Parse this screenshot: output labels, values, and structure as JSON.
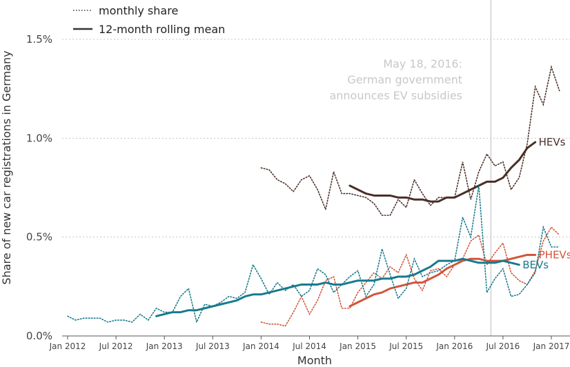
{
  "chart_data": {
    "type": "line",
    "xlabel": "Month",
    "ylabel": "Share of new car registrations in Germany",
    "x_range": [
      2012.0,
      2017.5
    ],
    "ylim": [
      0,
      1.7
    ],
    "x_ticks": [
      {
        "value": 2012.0,
        "label": "Jan 2012"
      },
      {
        "value": 2012.5,
        "label": "Jul 2012"
      },
      {
        "value": 2013.0,
        "label": "Jan 2013"
      },
      {
        "value": 2013.5,
        "label": "Jul 2013"
      },
      {
        "value": 2014.0,
        "label": "Jan 2014"
      },
      {
        "value": 2014.5,
        "label": "Jul 2014"
      },
      {
        "value": 2015.0,
        "label": "Jan 2015"
      },
      {
        "value": 2015.5,
        "label": "Jul 2015"
      },
      {
        "value": 2016.0,
        "label": "Jan 2016"
      },
      {
        "value": 2016.5,
        "label": "Jul 2016"
      },
      {
        "value": 2017.0,
        "label": "Jan 2017"
      }
    ],
    "y_ticks": [
      {
        "value": 0,
        "label": "0.0%"
      },
      {
        "value": 0.5,
        "label": "0.5%"
      },
      {
        "value": 1.0,
        "label": "1.0%"
      },
      {
        "value": 1.5,
        "label": "1.5%"
      }
    ],
    "grid": "horizontal dotted",
    "legend": {
      "position": "top-left",
      "items": [
        {
          "style": "dotted",
          "label": "monthly share"
        },
        {
          "style": "solid",
          "label": "12-month rolling mean"
        }
      ]
    },
    "annotation": {
      "x": 2016.375,
      "lines": [
        "May 18, 2016:",
        "German government",
        "announces EV subsidies"
      ]
    },
    "series": [
      {
        "name": "HEVs",
        "color": "#4a2e26",
        "monthly": {
          "start": 2014.0,
          "values": [
            0.85,
            0.84,
            0.79,
            0.77,
            0.73,
            0.79,
            0.81,
            0.74,
            0.64,
            0.83,
            0.72,
            0.72,
            0.71,
            0.7,
            0.67,
            0.61,
            0.61,
            0.69,
            0.65,
            0.79,
            0.72,
            0.66,
            0.7,
            0.7,
            0.7,
            0.88,
            0.69,
            0.83,
            0.92,
            0.86,
            0.88,
            0.74,
            0.8,
            0.97,
            1.26,
            1.17,
            1.36,
            1.24
          ]
        },
        "rolling": {
          "start": 2014.9167,
          "values": [
            0.76,
            0.74,
            0.72,
            0.71,
            0.71,
            0.71,
            0.7,
            0.7,
            0.69,
            0.69,
            0.68,
            0.68,
            0.7,
            0.7,
            0.72,
            0.74,
            0.76,
            0.78,
            0.78,
            0.8,
            0.85,
            0.89,
            0.95,
            0.98
          ]
        }
      },
      {
        "name": "PHEVs",
        "color": "#d2543a",
        "monthly": {
          "start": 2014.0,
          "values": [
            0.07,
            0.06,
            0.06,
            0.05,
            0.12,
            0.2,
            0.11,
            0.18,
            0.28,
            0.3,
            0.14,
            0.14,
            0.22,
            0.27,
            0.32,
            0.29,
            0.35,
            0.32,
            0.41,
            0.29,
            0.23,
            0.33,
            0.34,
            0.3,
            0.36,
            0.39,
            0.48,
            0.51,
            0.36,
            0.42,
            0.47,
            0.32,
            0.28,
            0.26,
            0.33,
            0.48,
            0.55,
            0.51
          ]
        },
        "rolling": {
          "start": 2014.9167,
          "values": [
            0.15,
            0.17,
            0.19,
            0.21,
            0.22,
            0.24,
            0.25,
            0.26,
            0.27,
            0.27,
            0.29,
            0.31,
            0.34,
            0.36,
            0.38,
            0.39,
            0.39,
            0.38,
            0.38,
            0.38,
            0.39,
            0.4,
            0.41,
            0.41
          ]
        }
      },
      {
        "name": "BEVs",
        "color": "#177a8c",
        "monthly": {
          "start": 2012.0,
          "values": [
            0.1,
            0.08,
            0.09,
            0.09,
            0.09,
            0.07,
            0.08,
            0.08,
            0.07,
            0.11,
            0.08,
            0.14,
            0.12,
            0.12,
            0.2,
            0.24,
            0.07,
            0.16,
            0.15,
            0.17,
            0.2,
            0.19,
            0.22,
            0.36,
            0.29,
            0.21,
            0.27,
            0.23,
            0.26,
            0.2,
            0.23,
            0.34,
            0.31,
            0.22,
            0.26,
            0.3,
            0.33,
            0.2,
            0.26,
            0.44,
            0.31,
            0.19,
            0.24,
            0.39,
            0.3,
            0.32,
            0.33,
            0.36,
            0.38,
            0.6,
            0.5,
            0.76,
            0.22,
            0.29,
            0.34,
            0.2,
            0.21,
            0.26,
            0.32,
            0.55,
            0.45,
            0.45
          ]
        },
        "rolling": {
          "start": 2012.9167,
          "values": [
            0.1,
            0.11,
            0.12,
            0.12,
            0.13,
            0.13,
            0.14,
            0.15,
            0.16,
            0.17,
            0.18,
            0.2,
            0.21,
            0.21,
            0.22,
            0.23,
            0.24,
            0.25,
            0.26,
            0.26,
            0.26,
            0.27,
            0.26,
            0.26,
            0.27,
            0.28,
            0.28,
            0.28,
            0.29,
            0.29,
            0.3,
            0.3,
            0.31,
            0.33,
            0.35,
            0.38,
            0.38,
            0.38,
            0.39,
            0.38,
            0.37,
            0.37,
            0.37,
            0.38,
            0.37,
            0.36
          ]
        }
      }
    ]
  }
}
